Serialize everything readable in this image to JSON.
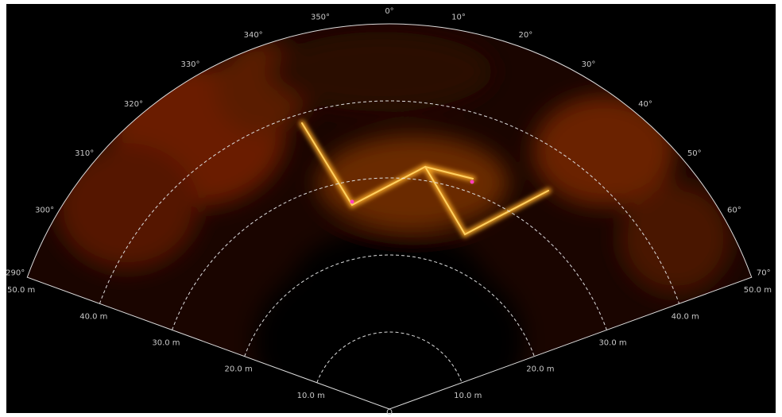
{
  "bearing_labels": [
    "290°",
    "300°",
    "310°",
    "320°",
    "330°",
    "340°",
    "350°",
    "0°",
    "10°",
    "20°",
    "30°",
    "40°",
    "50°",
    "60°",
    "70°"
  ],
  "left_range_labels": [
    "10.0 m",
    "20.0 m",
    "30.0 m",
    "40.0 m",
    "50.0 m"
  ],
  "right_range_labels": [
    "10.0 m",
    "20.0 m",
    "30.0 m",
    "40.0 m",
    "50.0 m"
  ],
  "origin_label": "O"
}
